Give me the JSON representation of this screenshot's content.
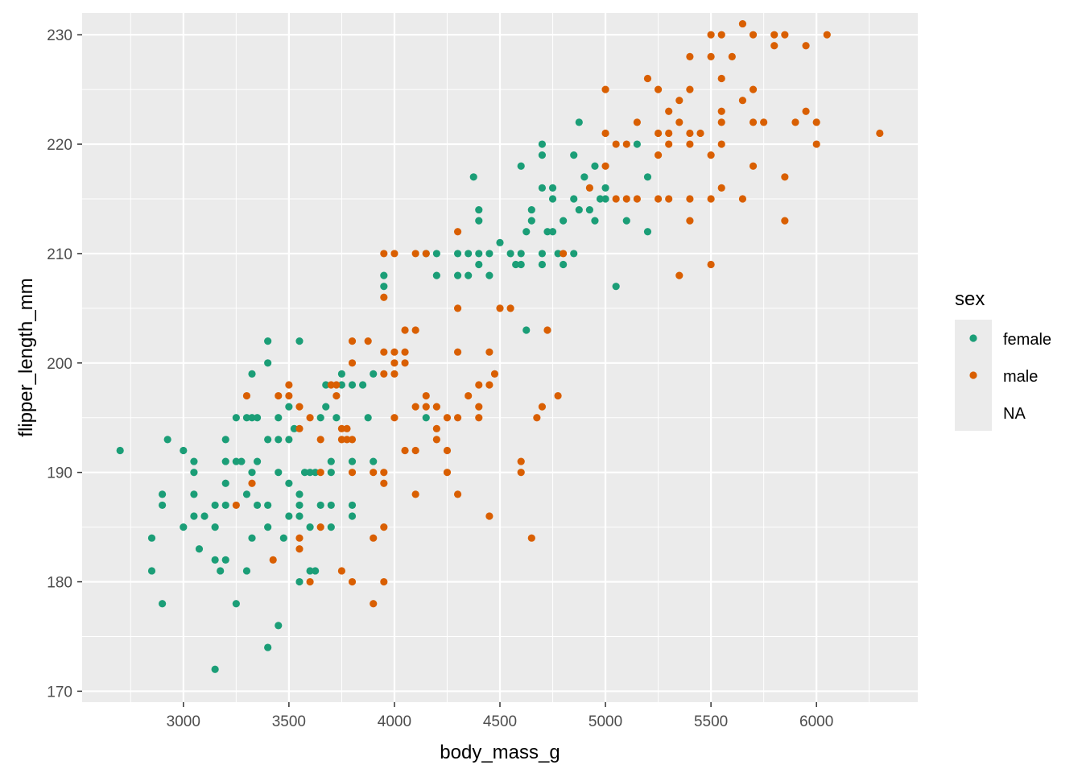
{
  "chart_data": {
    "type": "scatter",
    "xlabel": "body_mass_g",
    "ylabel": "flipper_length_mm",
    "xlim": [
      2520,
      6480
    ],
    "ylim": [
      169,
      232
    ],
    "x_ticks": [
      3000,
      3500,
      4000,
      4500,
      5000,
      5500,
      6000
    ],
    "y_ticks": [
      170,
      180,
      190,
      200,
      210,
      220,
      230
    ],
    "grid": true,
    "legend": {
      "title": "sex",
      "position": "right",
      "entries": [
        {
          "label": "female",
          "color": "#1b9e77"
        },
        {
          "label": "male",
          "color": "#d95f02"
        },
        {
          "label": "NA",
          "color": ""
        }
      ]
    },
    "series": [
      {
        "name": "female",
        "color": "#1b9e77",
        "points": [
          [
            2700,
            192
          ],
          [
            2850,
            184
          ],
          [
            2850,
            181
          ],
          [
            2900,
            188
          ],
          [
            2900,
            187
          ],
          [
            2900,
            178
          ],
          [
            2925,
            193
          ],
          [
            3000,
            192
          ],
          [
            3000,
            185
          ],
          [
            3050,
            191
          ],
          [
            3050,
            190
          ],
          [
            3050,
            188
          ],
          [
            3050,
            186
          ],
          [
            3075,
            183
          ],
          [
            3100,
            186
          ],
          [
            3150,
            187
          ],
          [
            3150,
            185
          ],
          [
            3150,
            182
          ],
          [
            3150,
            172
          ],
          [
            3175,
            181
          ],
          [
            3200,
            193
          ],
          [
            3200,
            191
          ],
          [
            3200,
            189
          ],
          [
            3200,
            187
          ],
          [
            3200,
            182
          ],
          [
            3250,
            195
          ],
          [
            3250,
            191
          ],
          [
            3250,
            178
          ],
          [
            3275,
            191
          ],
          [
            3300,
            195
          ],
          [
            3300,
            188
          ],
          [
            3300,
            181
          ],
          [
            3325,
            199
          ],
          [
            3325,
            195
          ],
          [
            3325,
            190
          ],
          [
            3325,
            184
          ],
          [
            3350,
            195
          ],
          [
            3350,
            191
          ],
          [
            3350,
            187
          ],
          [
            3400,
            202
          ],
          [
            3400,
            200
          ],
          [
            3400,
            193
          ],
          [
            3400,
            187
          ],
          [
            3400,
            185
          ],
          [
            3400,
            174
          ],
          [
            3450,
            195
          ],
          [
            3450,
            193
          ],
          [
            3450,
            190
          ],
          [
            3450,
            176
          ],
          [
            3475,
            184
          ],
          [
            3500,
            196
          ],
          [
            3500,
            193
          ],
          [
            3500,
            189
          ],
          [
            3500,
            186
          ],
          [
            3525,
            194
          ],
          [
            3550,
            202
          ],
          [
            3550,
            188
          ],
          [
            3550,
            187
          ],
          [
            3550,
            186
          ],
          [
            3550,
            180
          ],
          [
            3575,
            190
          ],
          [
            3600,
            190
          ],
          [
            3600,
            185
          ],
          [
            3600,
            181
          ],
          [
            3625,
            190
          ],
          [
            3625,
            181
          ],
          [
            3650,
            195
          ],
          [
            3650,
            187
          ],
          [
            3675,
            196
          ],
          [
            3675,
            198
          ],
          [
            3700,
            190
          ],
          [
            3700,
            187
          ],
          [
            3700,
            185
          ],
          [
            3700,
            191
          ],
          [
            3725,
            195
          ],
          [
            3750,
            198
          ],
          [
            3750,
            199
          ],
          [
            3800,
            198
          ],
          [
            3800,
            191
          ],
          [
            3800,
            187
          ],
          [
            3800,
            186
          ],
          [
            3850,
            198
          ],
          [
            3875,
            195
          ],
          [
            3900,
            191
          ],
          [
            3900,
            199
          ],
          [
            3950,
            208
          ],
          [
            3950,
            207
          ],
          [
            4150,
            210
          ],
          [
            4150,
            195
          ],
          [
            4200,
            210
          ],
          [
            4200,
            208
          ],
          [
            4300,
            210
          ],
          [
            4300,
            208
          ],
          [
            4350,
            210
          ],
          [
            4350,
            208
          ],
          [
            4375,
            217
          ],
          [
            4400,
            214
          ],
          [
            4400,
            213
          ],
          [
            4400,
            210
          ],
          [
            4400,
            209
          ],
          [
            4450,
            210
          ],
          [
            4450,
            208
          ],
          [
            4500,
            211
          ],
          [
            4550,
            210
          ],
          [
            4575,
            209
          ],
          [
            4600,
            218
          ],
          [
            4600,
            210
          ],
          [
            4600,
            209
          ],
          [
            4625,
            203
          ],
          [
            4625,
            212
          ],
          [
            4650,
            214
          ],
          [
            4650,
            213
          ],
          [
            4700,
            220
          ],
          [
            4700,
            219
          ],
          [
            4700,
            216
          ],
          [
            4700,
            210
          ],
          [
            4700,
            209
          ],
          [
            4725,
            212
          ],
          [
            4750,
            216
          ],
          [
            4750,
            215
          ],
          [
            4750,
            212
          ],
          [
            4775,
            210
          ],
          [
            4800,
            213
          ],
          [
            4800,
            209
          ],
          [
            4850,
            215
          ],
          [
            4850,
            210
          ],
          [
            4875,
            222
          ],
          [
            4875,
            214
          ],
          [
            4850,
            219
          ],
          [
            4900,
            217
          ],
          [
            4925,
            214
          ],
          [
            4950,
            218
          ],
          [
            4950,
            213
          ],
          [
            4975,
            215
          ],
          [
            5000,
            216
          ],
          [
            5000,
            215
          ],
          [
            5050,
            207
          ],
          [
            5100,
            213
          ],
          [
            5150,
            220
          ],
          [
            5200,
            217
          ],
          [
            5200,
            212
          ]
        ]
      },
      {
        "name": "male",
        "color": "#d95f02",
        "points": [
          [
            3250,
            187
          ],
          [
            3300,
            197
          ],
          [
            3325,
            189
          ],
          [
            3425,
            182
          ],
          [
            3450,
            197
          ],
          [
            3500,
            198
          ],
          [
            3500,
            197
          ],
          [
            3550,
            194
          ],
          [
            3550,
            196
          ],
          [
            3550,
            184
          ],
          [
            3550,
            183
          ],
          [
            3600,
            195
          ],
          [
            3600,
            180
          ],
          [
            3650,
            193
          ],
          [
            3650,
            190
          ],
          [
            3650,
            185
          ],
          [
            3700,
            198
          ],
          [
            3725,
            198
          ],
          [
            3725,
            197
          ],
          [
            3750,
            193
          ],
          [
            3750,
            194
          ],
          [
            3750,
            181
          ],
          [
            3775,
            193
          ],
          [
            3775,
            194
          ],
          [
            3800,
            202
          ],
          [
            3800,
            200
          ],
          [
            3800,
            193
          ],
          [
            3800,
            190
          ],
          [
            3800,
            180
          ],
          [
            3875,
            202
          ],
          [
            3900,
            190
          ],
          [
            3900,
            184
          ],
          [
            3900,
            178
          ],
          [
            3950,
            210
          ],
          [
            3950,
            206
          ],
          [
            3950,
            201
          ],
          [
            3950,
            199
          ],
          [
            3950,
            190
          ],
          [
            3950,
            189
          ],
          [
            3950,
            185
          ],
          [
            3950,
            180
          ],
          [
            4000,
            210
          ],
          [
            4000,
            201
          ],
          [
            4000,
            200
          ],
          [
            4000,
            199
          ],
          [
            4000,
            195
          ],
          [
            4050,
            192
          ],
          [
            4050,
            200
          ],
          [
            4050,
            201
          ],
          [
            4050,
            203
          ],
          [
            4100,
            203
          ],
          [
            4100,
            196
          ],
          [
            4100,
            192
          ],
          [
            4100,
            188
          ],
          [
            4100,
            210
          ],
          [
            4150,
            210
          ],
          [
            4150,
            197
          ],
          [
            4150,
            196
          ],
          [
            4200,
            196
          ],
          [
            4200,
            194
          ],
          [
            4200,
            193
          ],
          [
            4250,
            192
          ],
          [
            4250,
            195
          ],
          [
            4250,
            190
          ],
          [
            4300,
            212
          ],
          [
            4300,
            205
          ],
          [
            4300,
            201
          ],
          [
            4300,
            195
          ],
          [
            4300,
            188
          ],
          [
            4350,
            197
          ],
          [
            4400,
            198
          ],
          [
            4400,
            196
          ],
          [
            4400,
            195
          ],
          [
            4450,
            201
          ],
          [
            4450,
            198
          ],
          [
            4450,
            186
          ],
          [
            4475,
            199
          ],
          [
            4500,
            205
          ],
          [
            4550,
            205
          ],
          [
            4600,
            191
          ],
          [
            4600,
            190
          ],
          [
            4650,
            184
          ],
          [
            4675,
            195
          ],
          [
            4700,
            196
          ],
          [
            4725,
            203
          ],
          [
            4775,
            197
          ],
          [
            4800,
            210
          ],
          [
            4925,
            216
          ],
          [
            5000,
            225
          ],
          [
            5000,
            221
          ],
          [
            5000,
            218
          ],
          [
            5050,
            220
          ],
          [
            5050,
            215
          ],
          [
            5100,
            220
          ],
          [
            5100,
            215
          ],
          [
            5150,
            215
          ],
          [
            5200,
            226
          ],
          [
            5250,
            225
          ],
          [
            5250,
            221
          ],
          [
            5250,
            219
          ],
          [
            5300,
            223
          ],
          [
            5300,
            221
          ],
          [
            5300,
            220
          ],
          [
            5300,
            215
          ],
          [
            5350,
            224
          ],
          [
            5350,
            222
          ],
          [
            5350,
            208
          ],
          [
            5400,
            228
          ],
          [
            5400,
            225
          ],
          [
            5400,
            220
          ],
          [
            5400,
            215
          ],
          [
            5400,
            213
          ],
          [
            5450,
            221
          ],
          [
            5500,
            230
          ],
          [
            5500,
            228
          ],
          [
            5500,
            219
          ],
          [
            5500,
            215
          ],
          [
            5500,
            209
          ],
          [
            5550,
            230
          ],
          [
            5550,
            226
          ],
          [
            5550,
            223
          ],
          [
            5550,
            222
          ],
          [
            5550,
            220
          ],
          [
            5550,
            216
          ],
          [
            5600,
            228
          ],
          [
            5650,
            231
          ],
          [
            5650,
            224
          ],
          [
            5650,
            215
          ],
          [
            5700,
            230
          ],
          [
            5700,
            225
          ],
          [
            5700,
            218
          ],
          [
            5750,
            222
          ],
          [
            5800,
            230
          ],
          [
            5800,
            229
          ],
          [
            5850,
            230
          ],
          [
            5850,
            217
          ],
          [
            5850,
            213
          ],
          [
            5950,
            229
          ],
          [
            5950,
            223
          ],
          [
            6000,
            222
          ],
          [
            6000,
            220
          ],
          [
            6050,
            230
          ],
          [
            6300,
            221
          ],
          [
            5900,
            222
          ],
          [
            5250,
            215
          ],
          [
            5700,
            222
          ],
          [
            5150,
            222
          ],
          [
            5400,
            221
          ]
        ]
      }
    ]
  }
}
